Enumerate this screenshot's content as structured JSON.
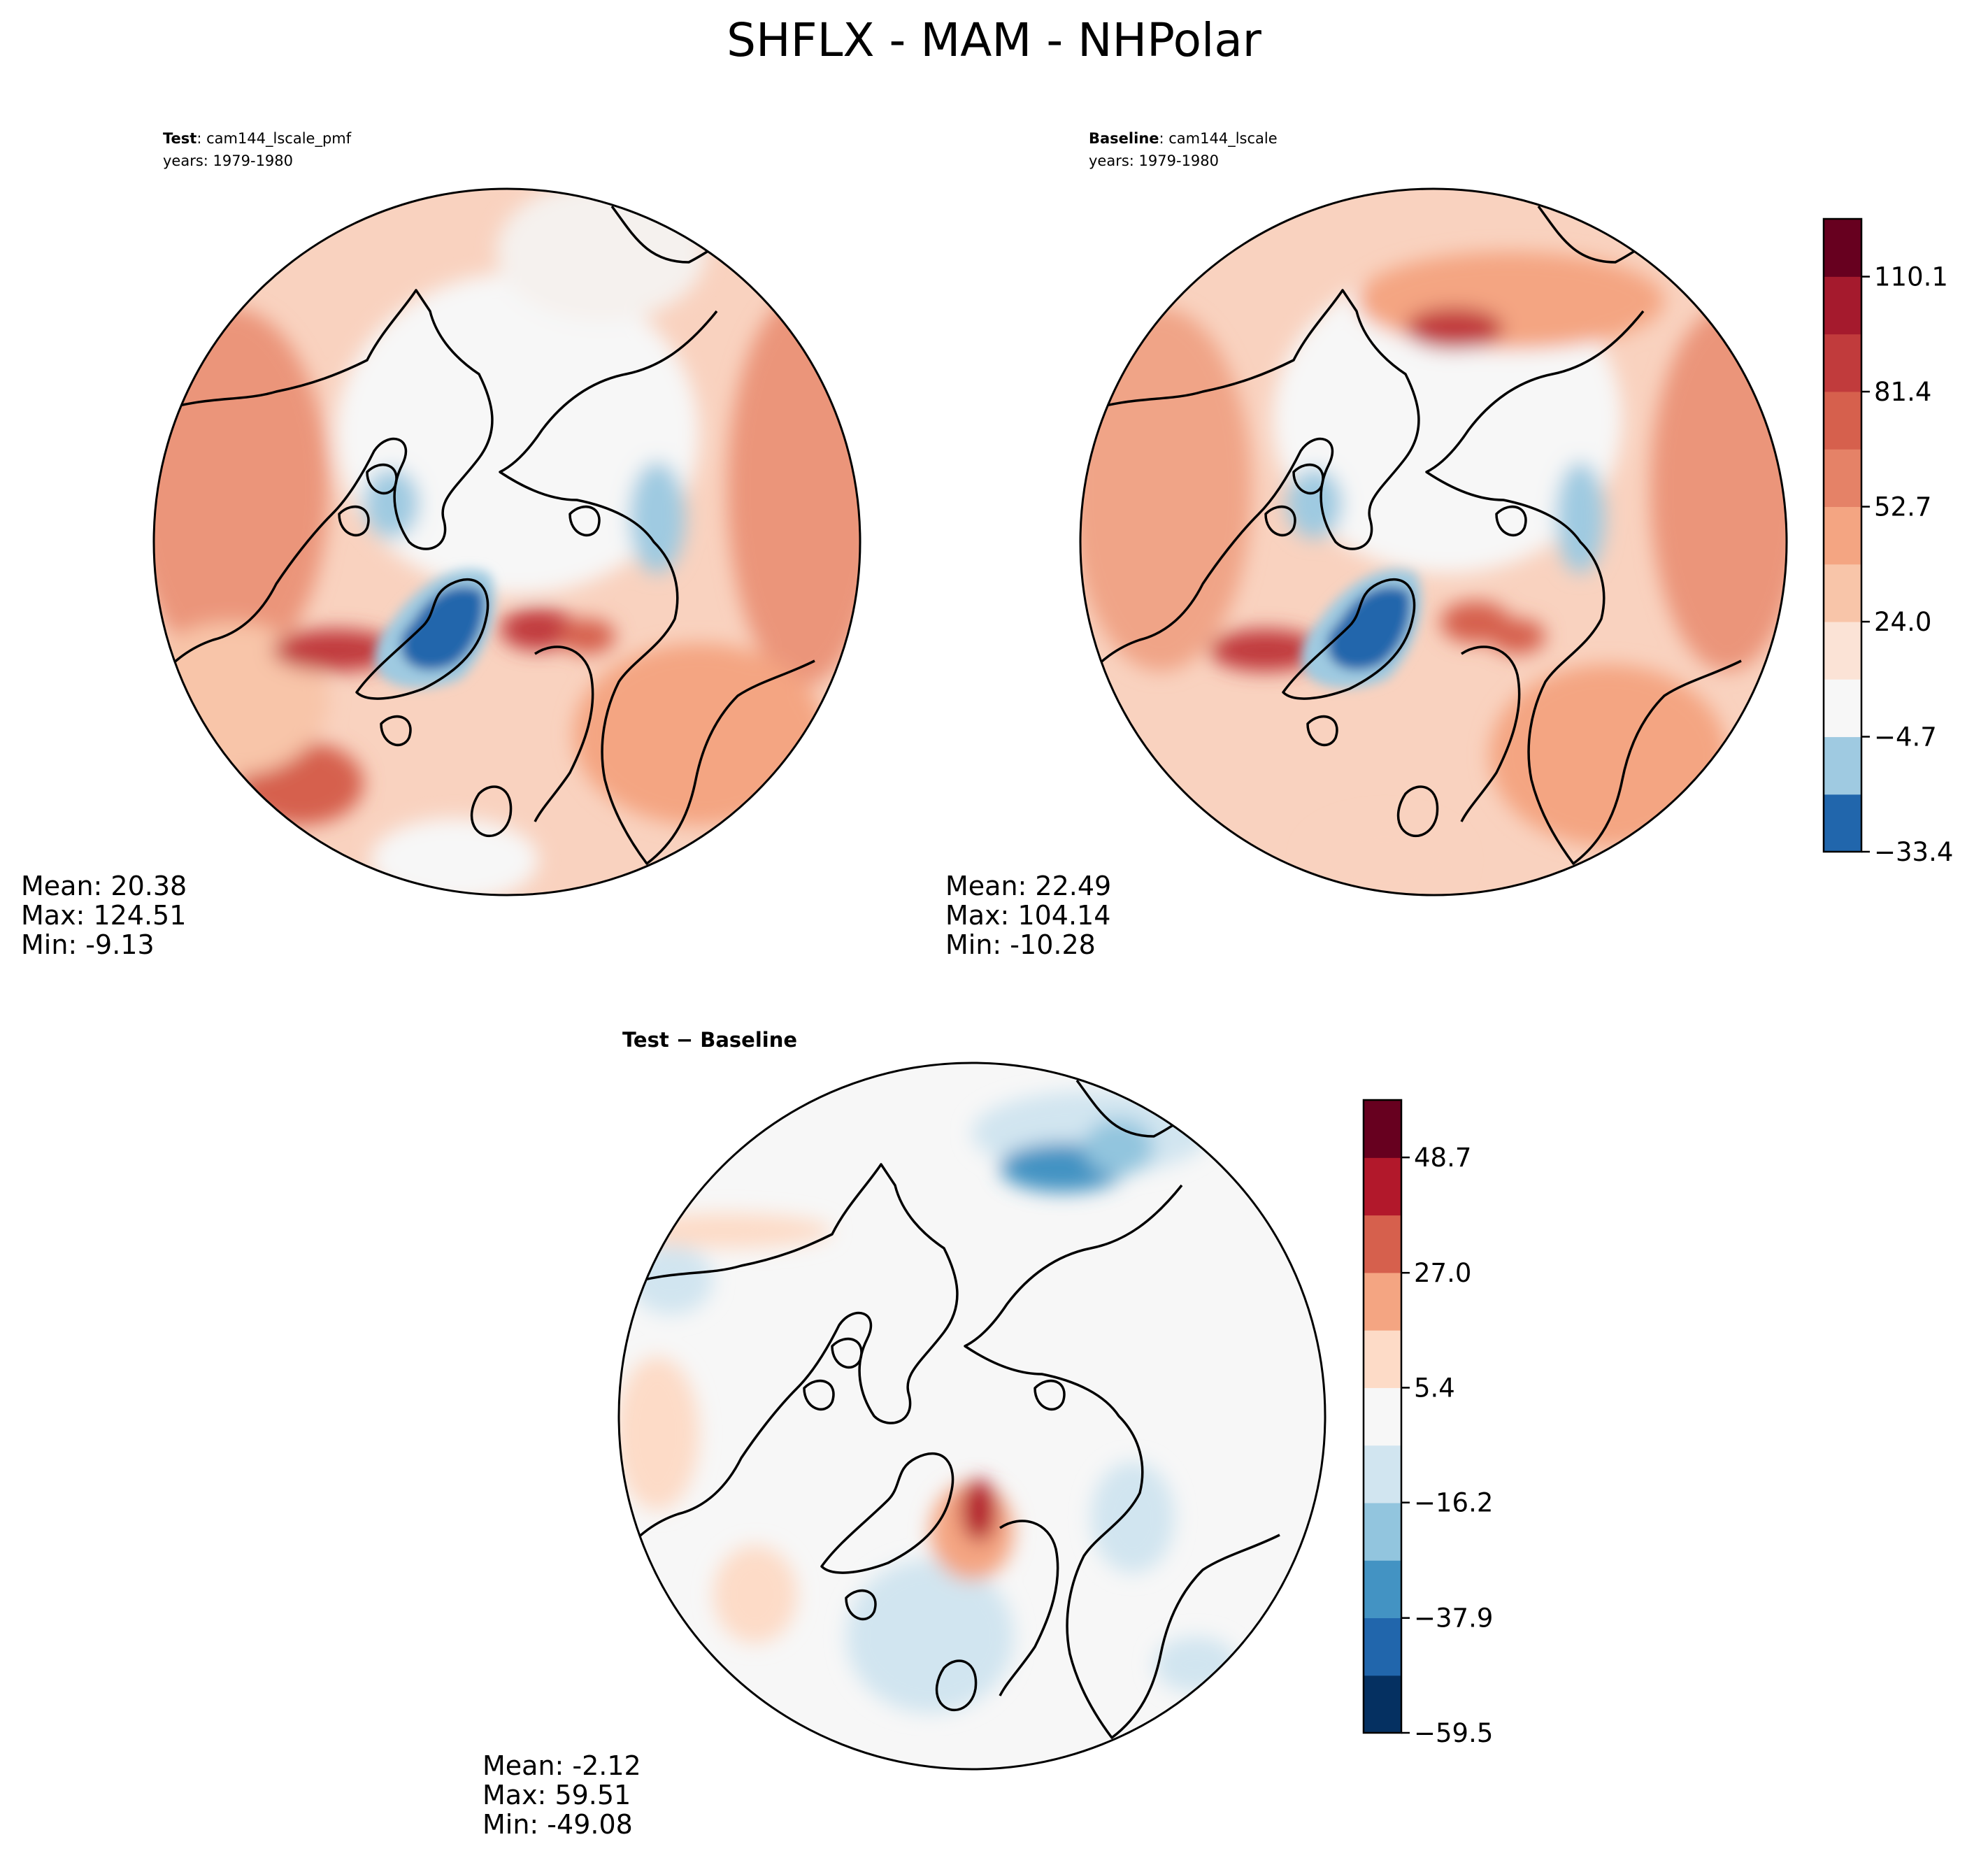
{
  "figure": {
    "suptitle": "SHFLX - MAM - NHPolar"
  },
  "chart_data": [
    {
      "type": "heatmap",
      "projection": "north-polar-stereographic",
      "title_bold": "Test",
      "title_rest": ": cam144_lscale_pmf",
      "subtitle": "years: 1979-1980",
      "stats": [
        "Mean: 20.38",
        "Max: 124.51",
        "Min: -9.13"
      ],
      "colormap": "RdBu_r"
    },
    {
      "type": "heatmap",
      "projection": "north-polar-stereographic",
      "title_bold": "Baseline",
      "title_rest": ": cam144_lscale",
      "subtitle": "years: 1979-1980",
      "stats": [
        "Mean: 22.49",
        "Max: 104.14",
        "Min: -10.28"
      ],
      "colormap": "RdBu_r",
      "colorbar": {
        "ticks": [
          "110.1",
          "81.4",
          "52.7",
          "24.0",
          "−4.7",
          "−33.4"
        ],
        "tick_values": [
          110.1,
          81.4,
          52.7,
          24.0,
          -4.7,
          -33.4
        ],
        "range": [
          -33.4,
          124.51
        ],
        "colors": [
          "#2166ac",
          "#9fcae1",
          "#f7f7f7",
          "#fbe3d6",
          "#f8c5a9",
          "#f4a582",
          "#e58267",
          "#d6604d",
          "#c13b3c",
          "#a51a2d",
          "#67001f"
        ]
      }
    },
    {
      "type": "heatmap",
      "projection": "north-polar-stereographic",
      "title_bold": "Test",
      "title_rest": " − Baseline",
      "stats": [
        "Mean: -2.12",
        "Max: 59.51",
        "Min: -49.08"
      ],
      "colormap": "RdBu_r",
      "colorbar": {
        "ticks": [
          "48.7",
          "27.0",
          "5.4",
          "−16.2",
          "−37.9",
          "−59.5"
        ],
        "tick_values": [
          48.7,
          27.0,
          5.4,
          -16.2,
          -37.9,
          -59.5
        ],
        "range": [
          -59.5,
          59.5
        ],
        "colors": [
          "#053061",
          "#2166ac",
          "#4393c3",
          "#92c5de",
          "#d1e5f0",
          "#f7f7f7",
          "#fddbc7",
          "#f4a582",
          "#d6604d",
          "#b2182b",
          "#67001f"
        ]
      }
    }
  ]
}
